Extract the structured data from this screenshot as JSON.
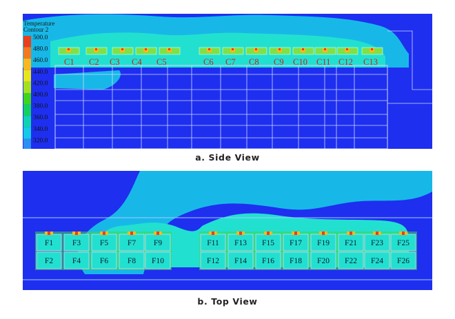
{
  "side_view": {
    "legend": {
      "title_line1": "Temperature",
      "title_line2": "Contour 2",
      "levels": [
        {
          "label": "500.0",
          "color": "#e8401c"
        },
        {
          "label": "480.0",
          "color": "#f5781e"
        },
        {
          "label": "460.0",
          "color": "#f7b91f"
        },
        {
          "label": "440.0",
          "color": "#e6e51f"
        },
        {
          "label": "420.0",
          "color": "#a4e01f"
        },
        {
          "label": "400.0",
          "color": "#3fd41e"
        },
        {
          "label": "380.0",
          "color": "#12cf63"
        },
        {
          "label": "360.0",
          "color": "#0fd3b0"
        },
        {
          "label": "340.0",
          "color": "#16c9e6"
        },
        {
          "label": "320.0",
          "color": "#2a8ff2"
        }
      ]
    },
    "cabinets": [
      "C1",
      "C2",
      "C3",
      "C4",
      "C5",
      "C6",
      "C7",
      "C8",
      "C9",
      "C10",
      "C11",
      "C12",
      "C13"
    ],
    "caption": "a. Side View"
  },
  "top_view": {
    "fans_top_row": [
      "F1",
      "F3",
      "F5",
      "F7",
      "F9",
      "F11",
      "F13",
      "F15",
      "F17",
      "F19",
      "F21",
      "F23",
      "F25"
    ],
    "fans_bottom_row": [
      "F2",
      "F4",
      "F6",
      "F8",
      "F10",
      "F12",
      "F14",
      "F16",
      "F18",
      "F20",
      "F22",
      "F24",
      "F26"
    ],
    "caption": "b. Top View"
  },
  "colors": {
    "background_field": "#1e2ff0",
    "cool_plume": "#17b8e8",
    "mid_plume": "#22e0d0",
    "warm": "#39d84a",
    "hot": "#f0e21e",
    "hottest": "#e8401c",
    "label_red": "#c81e1e"
  }
}
